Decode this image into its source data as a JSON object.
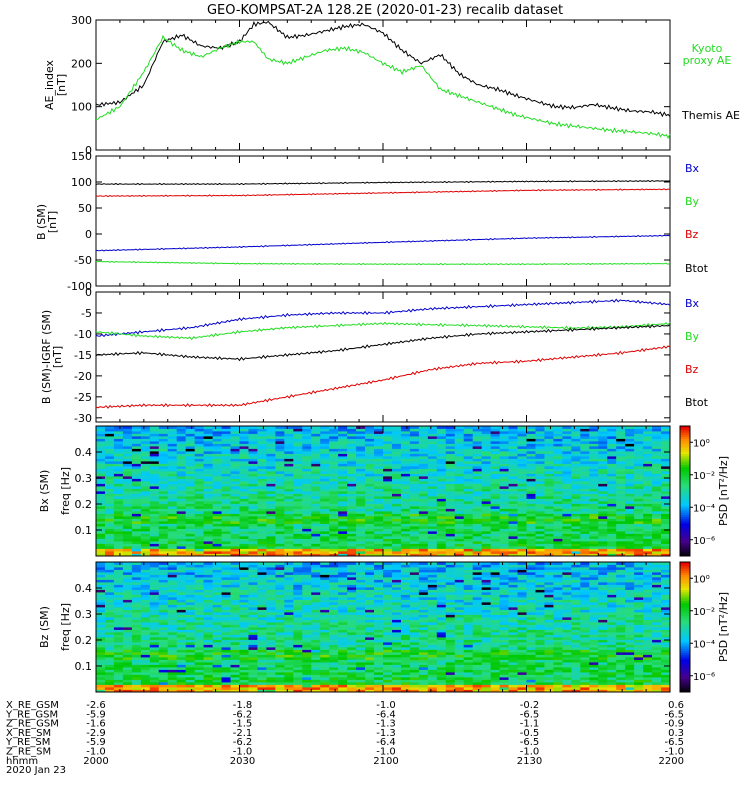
{
  "title": "GEO-KOMPSAT-2A 128.2E (2020-01-23) recalib dataset",
  "colors": {
    "black": "#000000",
    "red": "#e00000",
    "green": "#22dd22",
    "blue": "#0000cc"
  },
  "chart_data": [
    {
      "type": "line",
      "ylabel": "AE_index [nT]",
      "xlim": [
        "20:00",
        "22:00"
      ],
      "ylim": [
        0,
        300
      ],
      "yticks": [
        0,
        100,
        200,
        300
      ],
      "series": [
        {
          "name": "Themis AE",
          "color": "black",
          "x": [
            "20:00",
            "20:05",
            "20:10",
            "20:14",
            "20:18",
            "20:22",
            "20:26",
            "20:30",
            "20:33",
            "20:36",
            "20:40",
            "20:44",
            "20:48",
            "20:52",
            "20:56",
            "21:00",
            "21:04",
            "21:08",
            "21:12",
            "21:16",
            "21:20",
            "21:24",
            "21:28",
            "21:32",
            "21:36",
            "21:40",
            "21:44",
            "21:48",
            "21:52",
            "21:56",
            "22:00"
          ],
          "values": [
            104,
            110,
            150,
            250,
            265,
            240,
            235,
            250,
            290,
            295,
            260,
            265,
            275,
            285,
            290,
            270,
            230,
            200,
            220,
            175,
            150,
            140,
            125,
            112,
            100,
            98,
            105,
            97,
            90,
            88,
            80
          ]
        },
        {
          "name": "Kyoto proxy AE",
          "color": "green",
          "x": [
            "20:00",
            "20:05",
            "20:10",
            "20:14",
            "20:18",
            "20:22",
            "20:26",
            "20:30",
            "20:33",
            "20:36",
            "20:40",
            "20:44",
            "20:48",
            "20:52",
            "20:56",
            "21:00",
            "21:04",
            "21:08",
            "21:12",
            "21:16",
            "21:20",
            "21:24",
            "21:28",
            "21:32",
            "21:36",
            "21:40",
            "21:44",
            "21:48",
            "21:52",
            "21:56",
            "22:00"
          ],
          "values": [
            70,
            100,
            180,
            260,
            230,
            215,
            235,
            250,
            250,
            210,
            200,
            215,
            230,
            235,
            225,
            200,
            180,
            195,
            140,
            125,
            110,
            95,
            80,
            70,
            60,
            55,
            50,
            45,
            42,
            38,
            32
          ]
        }
      ]
    },
    {
      "type": "line",
      "ylabel": "B (SM) [nT]",
      "xlim": [
        "20:00",
        "22:00"
      ],
      "ylim": [
        -100,
        150
      ],
      "yticks": [
        -100,
        -50,
        0,
        50,
        100,
        150
      ],
      "series": [
        {
          "name": "Bx",
          "color": "blue",
          "x": [
            "20:00",
            "20:30",
            "21:00",
            "21:30",
            "22:00"
          ],
          "values": [
            -32,
            -25,
            -16,
            -8,
            -3
          ]
        },
        {
          "name": "By",
          "color": "green",
          "x": [
            "20:00",
            "20:30",
            "21:00",
            "21:30",
            "22:00"
          ],
          "values": [
            -53,
            -57,
            -58,
            -58,
            -57
          ]
        },
        {
          "name": "Bz",
          "color": "red",
          "x": [
            "20:00",
            "20:30",
            "21:00",
            "21:30",
            "22:00"
          ],
          "values": [
            73,
            74,
            79,
            84,
            86
          ]
        },
        {
          "name": "Btot",
          "color": "black",
          "x": [
            "20:00",
            "20:30",
            "21:00",
            "21:30",
            "22:00"
          ],
          "values": [
            96,
            96,
            99,
            101,
            102
          ]
        }
      ]
    },
    {
      "type": "line",
      "ylabel": "B (SM)-IGRF (SM) [nT]",
      "xlim": [
        "20:00",
        "22:00"
      ],
      "ylim": [
        -31,
        0
      ],
      "yticks": [
        -30,
        -25,
        -20,
        -15,
        -10,
        -5,
        0
      ],
      "series": [
        {
          "name": "Bx",
          "color": "blue",
          "x": [
            "20:00",
            "20:10",
            "20:20",
            "20:30",
            "20:40",
            "20:50",
            "21:00",
            "21:10",
            "21:20",
            "21:30",
            "21:40",
            "21:50",
            "22:00"
          ],
          "values": [
            -10.5,
            -9.5,
            -8.5,
            -6.5,
            -5.5,
            -5.0,
            -5.0,
            -4.0,
            -3.5,
            -3.0,
            -2.5,
            -2.0,
            -3.0
          ]
        },
        {
          "name": "By",
          "color": "green",
          "x": [
            "20:00",
            "20:10",
            "20:20",
            "20:30",
            "20:40",
            "20:50",
            "21:00",
            "21:10",
            "21:20",
            "21:30",
            "21:40",
            "21:50",
            "22:00"
          ],
          "values": [
            -9.5,
            -10.5,
            -11.0,
            -9.5,
            -8.5,
            -8.0,
            -7.5,
            -7.8,
            -8.0,
            -8.3,
            -8.6,
            -8.3,
            -7.5
          ]
        },
        {
          "name": "Bz",
          "color": "red",
          "x": [
            "20:00",
            "20:10",
            "20:20",
            "20:30",
            "20:40",
            "20:50",
            "21:00",
            "21:10",
            "21:20",
            "21:30",
            "21:40",
            "21:50",
            "22:00"
          ],
          "values": [
            -27.5,
            -27.0,
            -27.0,
            -27.0,
            -25.0,
            -23.0,
            -21.0,
            -18.5,
            -17.0,
            -16.5,
            -15.5,
            -14.5,
            -13.0
          ]
        },
        {
          "name": "Btot",
          "color": "black",
          "x": [
            "20:00",
            "20:10",
            "20:20",
            "20:30",
            "20:40",
            "20:50",
            "21:00",
            "21:10",
            "21:20",
            "21:30",
            "21:40",
            "21:50",
            "22:00"
          ],
          "values": [
            -15.0,
            -14.5,
            -15.5,
            -16.0,
            -15.0,
            -14.0,
            -12.5,
            -11.0,
            -10.0,
            -9.5,
            -9.0,
            -8.5,
            -8.0
          ]
        }
      ]
    },
    {
      "type": "heatmap",
      "ylabel": "Bx (SM) freq [Hz]",
      "yticks": [
        0.1,
        0.2,
        0.3,
        0.4
      ],
      "ylim": [
        0,
        0.5
      ],
      "xlim": [
        "20:00",
        "22:00"
      ],
      "colorbar": {
        "label": "PSD [nT²/Hz]",
        "ticks": [
          "10⁰",
          "10⁻²",
          "10⁻⁴",
          "10⁻⁶"
        ],
        "range_log10": [
          -7,
          1
        ]
      }
    },
    {
      "type": "heatmap",
      "ylabel": "Bz (SM) freq [Hz]",
      "yticks": [
        0.1,
        0.2,
        0.3,
        0.4
      ],
      "ylim": [
        0,
        0.5
      ],
      "xlim": [
        "20:00",
        "22:00"
      ],
      "colorbar": {
        "label": "PSD [nT²/Hz]",
        "ticks": [
          "10⁰",
          "10⁻²",
          "10⁻⁴",
          "10⁻⁶"
        ],
        "range_log10": [
          -7,
          1
        ]
      }
    }
  ],
  "legends": {
    "ae": [
      {
        "text": "Kyoto proxy AE",
        "color": "green"
      },
      {
        "text": "Themis AE",
        "color": "black"
      }
    ],
    "b": [
      {
        "text": "Bx",
        "color": "blue"
      },
      {
        "text": "By",
        "color": "green"
      },
      {
        "text": "Bz",
        "color": "red"
      },
      {
        "text": "Btot",
        "color": "black"
      }
    ],
    "db": [
      {
        "text": "Bx",
        "color": "blue"
      },
      {
        "text": "By",
        "color": "green"
      },
      {
        "text": "Bz",
        "color": "red"
      },
      {
        "text": "Btot",
        "color": "black"
      }
    ]
  },
  "ephemeris": {
    "labels": [
      "X_RE_GSM",
      "Y_RE_GSM",
      "Z_RE_GSM",
      "X_RE_SM",
      "Y_RE_SM",
      "Z_RE_SM",
      "hhmm",
      "2020 Jan 23"
    ],
    "columns": [
      [
        "-2.6",
        "-5.9",
        "-1.6",
        "-2.9",
        "-5.9",
        "-1.0",
        "2000"
      ],
      [
        "-1.8",
        "-6.2",
        "-1.5",
        "-2.1",
        "-6.2",
        "-1.0",
        "2030"
      ],
      [
        "-1.0",
        "-6.4",
        "-1.3",
        "-1.3",
        "-6.4",
        "-1.0",
        "2100"
      ],
      [
        "-0.2",
        "-6.5",
        "-1.1",
        "-0.5",
        "-6.5",
        "-1.0",
        "2130"
      ],
      [
        "0.6",
        "-6.5",
        "-0.9",
        "0.3",
        "-6.5",
        "-1.0",
        "2200"
      ]
    ]
  }
}
